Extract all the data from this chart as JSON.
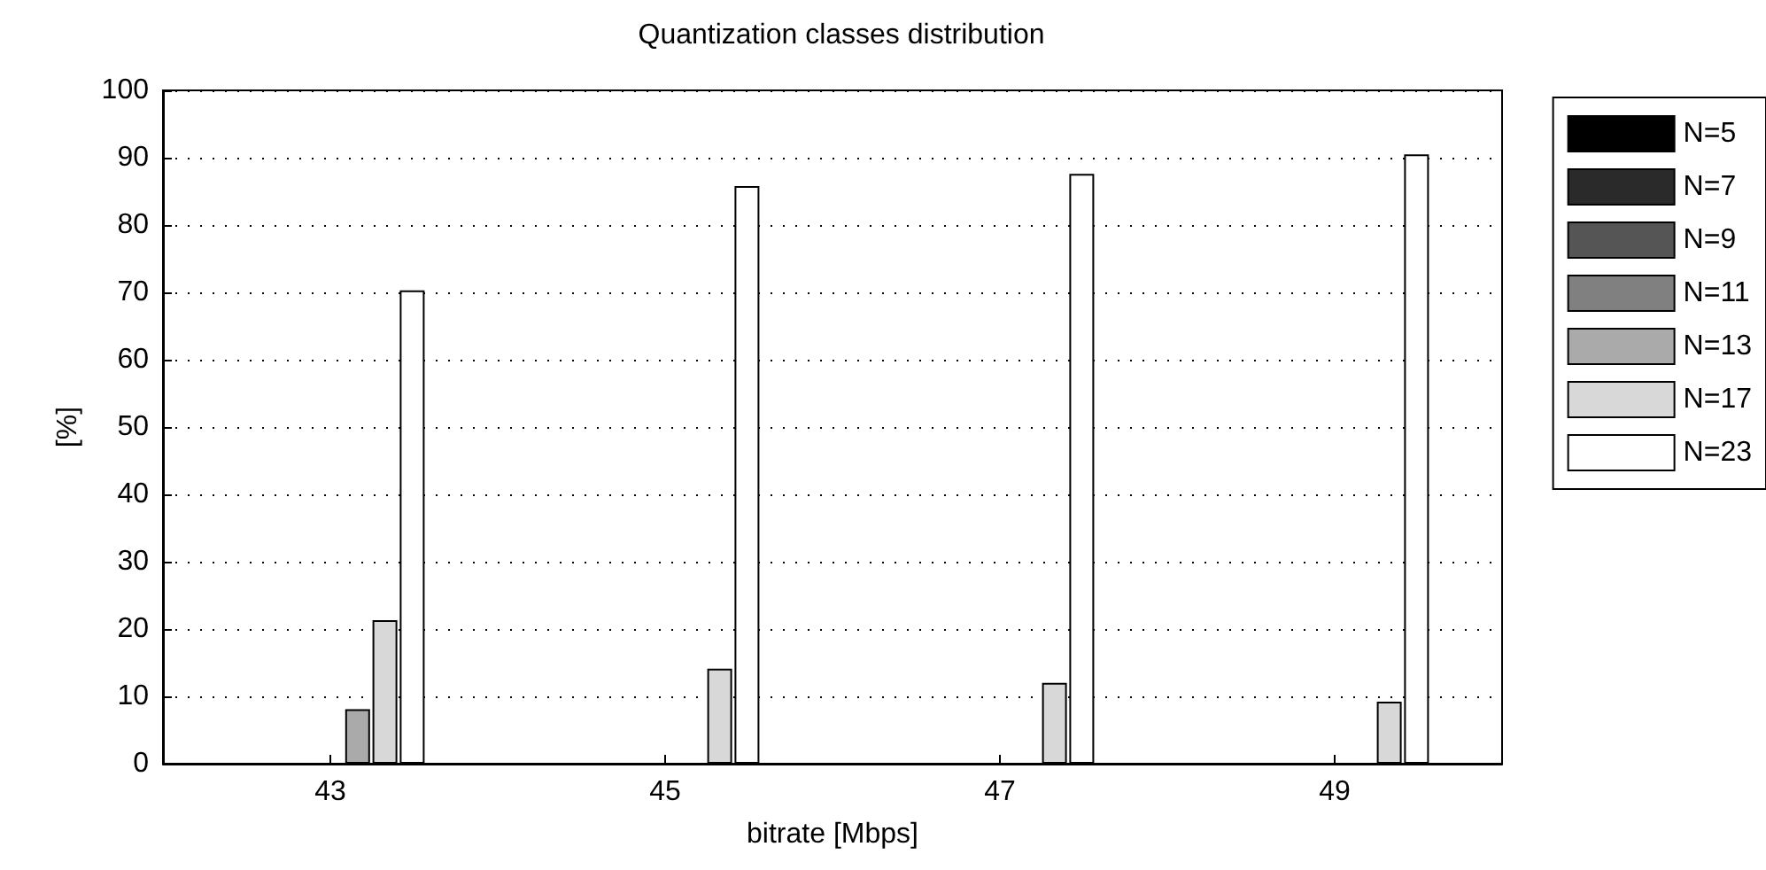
{
  "chart_data": {
    "type": "bar",
    "title": "Quantization classes distribution",
    "xlabel": "bitrate [Mbps]",
    "ylabel": "[%]",
    "categories": [
      "43",
      "45",
      "47",
      "49"
    ],
    "series": [
      {
        "name": "N=5",
        "color": "#000000",
        "values": [
          0,
          0,
          0,
          0
        ]
      },
      {
        "name": "N=7",
        "color": "#2a2a2a",
        "values": [
          0,
          0,
          0,
          0
        ]
      },
      {
        "name": "N=9",
        "color": "#555555",
        "values": [
          0,
          0,
          0,
          0
        ]
      },
      {
        "name": "N=11",
        "color": "#808080",
        "values": [
          0,
          0,
          0,
          0
        ]
      },
      {
        "name": "N=13",
        "color": "#aaaaaa",
        "values": [
          8.1,
          0,
          0,
          0
        ]
      },
      {
        "name": "N=17",
        "color": "#d8d8d8",
        "values": [
          21.3,
          14.1,
          12,
          9.2
        ]
      },
      {
        "name": "N=23",
        "color": "#ffffff",
        "values": [
          70.3,
          85.8,
          87.6,
          90.5
        ]
      }
    ],
    "ylim": [
      0,
      100
    ],
    "yticks": [
      0,
      10,
      20,
      30,
      40,
      50,
      60,
      70,
      80,
      90,
      100
    ],
    "grid": "y",
    "legend": "right"
  }
}
